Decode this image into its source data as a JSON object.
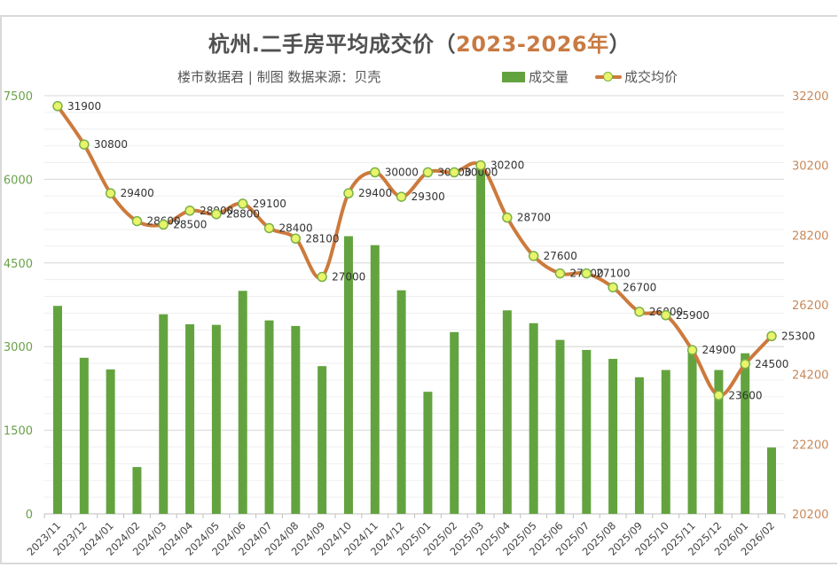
{
  "title": {
    "main": "杭州.二手房平均成交价（",
    "highlight": "2023-2026年",
    "close": "）"
  },
  "subtitle": "楼市数据君 | 制图  数据来源：贝壳",
  "legend": [
    {
      "label": "成交量",
      "type": "bar"
    },
    {
      "label": "成交均价",
      "type": "line"
    }
  ],
  "colors": {
    "bar": "#63a33f",
    "line": "#cc7a3c",
    "marker_fill": "#e8f46a",
    "marker_stroke": "#7bb04a",
    "left_axis_text": "#6aa14a",
    "right_axis_text": "#c8895a",
    "grid_major": "#d9d9d9",
    "grid_minor": "#efefef",
    "title_highlight": "#c87a42"
  },
  "chart_data": {
    "type": "bar+line",
    "title": "杭州.二手房平均成交价（2023-2026年）",
    "subtitle": "楼市数据君 | 制图  数据来源：贝壳",
    "categories": [
      "2023/11",
      "2023/12",
      "2024/01",
      "2024/02",
      "2024/03",
      "2024/04",
      "2024/05",
      "2024/06",
      "2024/07",
      "2024/08",
      "2024/09",
      "2024/10",
      "2024/11",
      "2024/12",
      "2025/01",
      "2025/02",
      "2025/03",
      "2025/04",
      "2025/05",
      "2025/06",
      "2025/07",
      "2025/08",
      "2025/09",
      "2025/10",
      "2025/11",
      "2025/12",
      "2026/01",
      "2026/02"
    ],
    "series": [
      {
        "name": "成交量",
        "type": "bar",
        "axis": "left",
        "values": [
          3730,
          2800,
          2590,
          840,
          3580,
          3400,
          3390,
          4000,
          3470,
          3370,
          2650,
          4980,
          4820,
          4010,
          2190,
          3260,
          6300,
          3650,
          3420,
          3120,
          2940,
          2780,
          2450,
          2580,
          2890,
          2580,
          2880,
          1190
        ]
      },
      {
        "name": "成交均价",
        "type": "line",
        "axis": "right",
        "smooth": true,
        "values": [
          31900,
          30800,
          29400,
          28600,
          28500,
          28900,
          28800,
          29100,
          28400,
          28100,
          27000,
          29400,
          30000,
          29300,
          30000,
          30000,
          30200,
          28700,
          27600,
          27100,
          27100,
          26700,
          26000,
          25900,
          24900,
          23600,
          24500,
          25300
        ]
      }
    ],
    "left_axis": {
      "min": 0,
      "max": 7500,
      "ticks": [
        0,
        1500,
        3000,
        4500,
        6000,
        7500
      ]
    },
    "right_axis": {
      "min": 20200,
      "max": 32200,
      "ticks": [
        20200,
        22200,
        24200,
        26200,
        28200,
        30200,
        32200
      ]
    },
    "grid": true,
    "legend_position": "top-right"
  }
}
